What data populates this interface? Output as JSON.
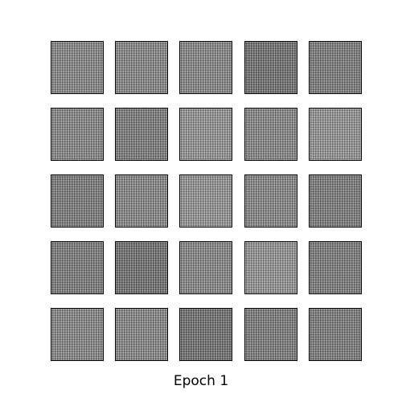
{
  "figure": {
    "caption": "Epoch 1",
    "grid": {
      "rows": 5,
      "cols": 5
    },
    "tile_tone_levels": [
      [
        1,
        1,
        1,
        4,
        2
      ],
      [
        1,
        2,
        3,
        1,
        3
      ],
      [
        2,
        1,
        3,
        1,
        2
      ],
      [
        2,
        4,
        1,
        3,
        2
      ],
      [
        1,
        1,
        4,
        2,
        2
      ]
    ],
    "colors": {
      "background": "#ffffff",
      "tile_border": "#000000",
      "tile_tones": [
        "#858585",
        "#7a7a7a",
        "#939393",
        "#6f6f6f"
      ]
    }
  }
}
